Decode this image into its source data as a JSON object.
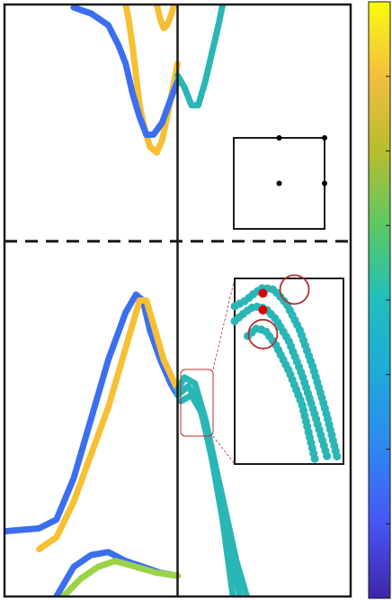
{
  "chart_data": {
    "type": "line",
    "title": "",
    "xlabel": "",
    "ylabel": "",
    "colormap": "parula",
    "grid": false,
    "legend": "none",
    "colorbar": {
      "placement": "right",
      "ticks": 8
    },
    "axes": {
      "xlim": [
        0,
        1
      ],
      "ylim": [
        0,
        1
      ]
    },
    "fermi_level": 0.6,
    "k_divider": 0.5,
    "series": [
      {
        "color": "#f7c033",
        "x": [
          0.35,
          0.36,
          0.37,
          0.38,
          0.39,
          0.405,
          0.42,
          0.44,
          0.455,
          0.47,
          0.49,
          0.5
        ],
        "y": [
          1.0,
          0.97,
          0.93,
          0.88,
          0.83,
          0.79,
          0.76,
          0.75,
          0.77,
          0.81,
          0.87,
          0.9
        ]
      },
      {
        "color": "#3b6ff0",
        "x": [
          0.2,
          0.25,
          0.3,
          0.33,
          0.35,
          0.37,
          0.39,
          0.41,
          0.43,
          0.455,
          0.48,
          0.5
        ],
        "y": [
          0.995,
          0.985,
          0.965,
          0.93,
          0.9,
          0.85,
          0.81,
          0.78,
          0.78,
          0.8,
          0.84,
          0.87
        ]
      },
      {
        "color": "#f7c033",
        "x": [
          0.44,
          0.45,
          0.46,
          0.47,
          0.48,
          0.49
        ],
        "y": [
          1.0,
          0.975,
          0.96,
          0.965,
          0.98,
          1.0
        ]
      },
      {
        "color": "#2bb6b6",
        "x": [
          0.5,
          0.52,
          0.54,
          0.56,
          0.58,
          0.6,
          0.62,
          0.63
        ],
        "y": [
          0.88,
          0.86,
          0.83,
          0.83,
          0.87,
          0.92,
          0.97,
          1.0
        ]
      },
      {
        "color": "#3b6ff0",
        "x": [
          0.0,
          0.1,
          0.15,
          0.2,
          0.25,
          0.3,
          0.35,
          0.38,
          0.4,
          0.42,
          0.45,
          0.48,
          0.5
        ],
        "y": [
          0.11,
          0.115,
          0.13,
          0.2,
          0.3,
          0.4,
          0.48,
          0.51,
          0.5,
          0.45,
          0.4,
          0.36,
          0.34
        ]
      },
      {
        "color": "#f7c033",
        "x": [
          0.1,
          0.15,
          0.2,
          0.25,
          0.3,
          0.35,
          0.39,
          0.41,
          0.43,
          0.46,
          0.5
        ],
        "y": [
          0.08,
          0.1,
          0.16,
          0.24,
          0.32,
          0.42,
          0.5,
          0.5,
          0.46,
          0.4,
          0.35
        ]
      },
      {
        "color": "#3b6ff0",
        "x": [
          0.15,
          0.2,
          0.25,
          0.3,
          0.35,
          0.4,
          0.45,
          0.5
        ],
        "y": [
          0.0,
          0.05,
          0.07,
          0.075,
          0.06,
          0.05,
          0.04,
          0.035
        ]
      },
      {
        "color": "#9cd246",
        "x": [
          0.17,
          0.22,
          0.27,
          0.32,
          0.38,
          0.44,
          0.5
        ],
        "y": [
          0.0,
          0.03,
          0.05,
          0.06,
          0.05,
          0.04,
          0.035
        ]
      },
      {
        "color": "#2bb6b6",
        "x": [
          0.5,
          0.52,
          0.55,
          0.58,
          0.61,
          0.64,
          0.67,
          0.7
        ],
        "y": [
          0.35,
          0.37,
          0.36,
          0.3,
          0.22,
          0.14,
          0.06,
          0.0
        ]
      },
      {
        "color": "#2bb6b6",
        "x": [
          0.5,
          0.53,
          0.56,
          0.59,
          0.62,
          0.65,
          0.68
        ],
        "y": [
          0.34,
          0.355,
          0.33,
          0.26,
          0.17,
          0.09,
          0.0
        ]
      },
      {
        "color": "#2bb6b6",
        "x": [
          0.51,
          0.54,
          0.57,
          0.6,
          0.63,
          0.66
        ],
        "y": [
          0.33,
          0.34,
          0.31,
          0.23,
          0.13,
          0.0
        ]
      }
    ],
    "inset_top_points": [
      {
        "x": 0.5,
        "y": 1.0
      },
      {
        "x": 1.0,
        "y": 1.0
      },
      {
        "x": 0.5,
        "y": 0.5
      },
      {
        "x": 1.0,
        "y": 0.5
      }
    ],
    "inset_zoom_curves": [
      {
        "x": [
          0.0,
          0.1,
          0.18,
          0.26,
          0.36,
          0.48,
          0.6,
          0.72,
          0.84,
          0.95
        ],
        "y": [
          0.85,
          0.88,
          0.92,
          0.95,
          0.94,
          0.86,
          0.72,
          0.52,
          0.28,
          0.02
        ]
      },
      {
        "x": [
          0.0,
          0.1,
          0.18,
          0.28,
          0.38,
          0.5,
          0.62,
          0.74,
          0.86
        ],
        "y": [
          0.77,
          0.82,
          0.85,
          0.84,
          0.78,
          0.66,
          0.48,
          0.26,
          0.02
        ]
      },
      {
        "x": [
          0.12,
          0.2,
          0.28,
          0.38,
          0.5,
          0.62,
          0.74
        ],
        "y": [
          0.69,
          0.73,
          0.72,
          0.64,
          0.5,
          0.32,
          0.02
        ]
      }
    ],
    "inset_zoom_red_points": [
      {
        "x": 0.26,
        "y": 0.92
      },
      {
        "x": 0.26,
        "y": 0.83
      }
    ],
    "inset_zoom_circles": [
      {
        "x": 0.55,
        "y": 0.94
      },
      {
        "x": 0.26,
        "y": 0.7
      }
    ],
    "colors": {
      "frame": "#1a1a1a",
      "zoom_box": "#b03030",
      "red_marker": "#e00000",
      "colorbar": [
        "#3e26a8",
        "#4655f4",
        "#2f87f1",
        "#1fa9d9",
        "#21bebc",
        "#5cc863",
        "#b7bd2f",
        "#f4be3f",
        "#f9fb0e"
      ]
    }
  }
}
